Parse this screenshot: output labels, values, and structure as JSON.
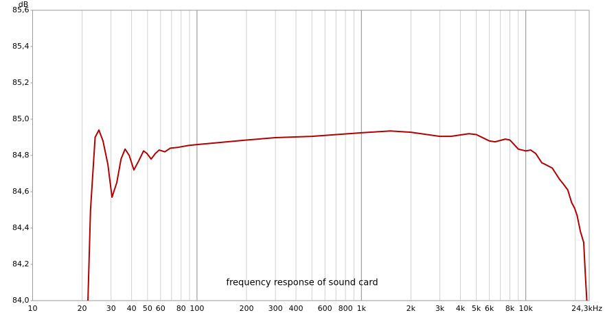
{
  "chart_data": {
    "type": "line",
    "annotation": "frequency response of sound card",
    "ylabel": "dB",
    "x_scale": "log",
    "x": [
      21.7,
      22.5,
      24,
      25.3,
      26.8,
      28.7,
      30.4,
      32.5,
      34.5,
      36.5,
      38.7,
      41.3,
      44.2,
      47.3,
      49.7,
      52.6,
      55.7,
      58.8,
      63.7,
      68.7,
      77,
      89,
      100,
      200,
      300,
      500,
      1000,
      1500,
      2000,
      3000,
      3500,
      4500,
      5000,
      6000,
      6500,
      7500,
      8000,
      9000,
      10000,
      10700,
      11500,
      12500,
      13500,
      14500,
      16000,
      17000,
      18000,
      19000,
      19800,
      20500,
      21500,
      22500,
      23000,
      23500
    ],
    "series": [
      {
        "name": "frequency response",
        "color": "#b00000",
        "values": [
          84.0,
          84.5,
          84.9,
          84.94,
          84.88,
          84.75,
          84.57,
          84.65,
          84.78,
          84.835,
          84.8,
          84.72,
          84.77,
          84.825,
          84.81,
          84.78,
          84.81,
          84.83,
          84.82,
          84.84,
          84.845,
          84.855,
          84.86,
          84.885,
          84.898,
          84.905,
          84.925,
          84.935,
          84.928,
          84.905,
          84.905,
          84.92,
          84.915,
          84.88,
          84.875,
          84.89,
          84.885,
          84.835,
          84.825,
          84.83,
          84.81,
          84.76,
          84.745,
          84.73,
          84.67,
          84.64,
          84.61,
          84.54,
          84.51,
          84.47,
          84.38,
          84.32,
          84.15,
          84.0
        ]
      }
    ],
    "xlim": [
      10,
      24300
    ],
    "xticks": [
      10,
      20,
      30,
      40,
      50,
      60,
      80,
      100,
      200,
      300,
      400,
      600,
      800,
      {
        "value": 1000,
        "label": "1k"
      },
      {
        "value": 2000,
        "label": "2k"
      },
      {
        "value": 3000,
        "label": "3k"
      },
      {
        "value": 4000,
        "label": "4k"
      },
      {
        "value": 5000,
        "label": "5k"
      },
      {
        "value": 6000,
        "label": "6k"
      },
      {
        "value": 8000,
        "label": "8k"
      },
      {
        "value": 10000,
        "label": "10k"
      },
      {
        "value": 24300,
        "label": "24,3kHz"
      }
    ],
    "x_minor_grid": [
      70,
      90,
      500,
      700,
      900,
      7000,
      9000,
      20000
    ],
    "ylim": [
      84.0,
      85.6
    ],
    "yticks": [
      {
        "value": 84.0,
        "label": "84,0"
      },
      {
        "value": 84.2,
        "label": "84,2"
      },
      {
        "value": 84.4,
        "label": "84,4"
      },
      {
        "value": 84.6,
        "label": "84,6"
      },
      {
        "value": 84.8,
        "label": "84,8"
      },
      {
        "value": 85.0,
        "label": "85,0"
      },
      {
        "value": 85.2,
        "label": "85,2"
      },
      {
        "value": 85.4,
        "label": "85,4"
      },
      {
        "value": 85.6,
        "label": "85,6"
      }
    ],
    "grid": true
  }
}
